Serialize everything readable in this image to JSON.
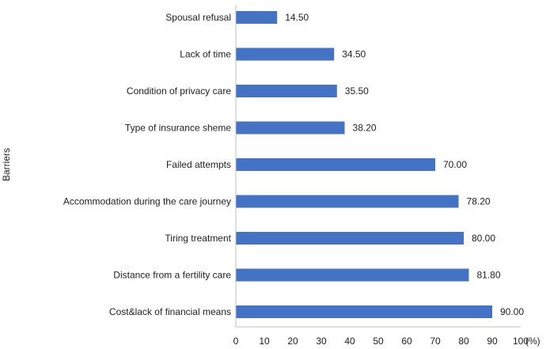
{
  "chart_data": {
    "type": "bar",
    "orientation": "horizontal",
    "categories": [
      "Spousal refusal",
      "Lack of time",
      "Condition of privacy care",
      "Type of insurance sheme",
      "Failed attempts",
      "Accommodation during the care journey",
      "Tiring treatment",
      "Distance from a fertility care",
      "Cost&lack of financial means"
    ],
    "values": [
      14.5,
      34.5,
      35.5,
      38.2,
      70.0,
      78.2,
      80.0,
      81.8,
      90.0
    ],
    "value_labels": [
      "14.50",
      "34.50",
      "35.50",
      "38.20",
      "70.00",
      "78.20",
      "80.00",
      "81.80",
      "90.00"
    ],
    "xlim": [
      0,
      100
    ],
    "x_ticks": [
      "0",
      "10",
      "20",
      "30",
      "40",
      "50",
      "60",
      "70",
      "80",
      "90",
      "100"
    ],
    "xlabel": "(%)",
    "ylabel": "Barriers",
    "bar_color": "#4472C4",
    "grid": false,
    "legend": "none"
  }
}
